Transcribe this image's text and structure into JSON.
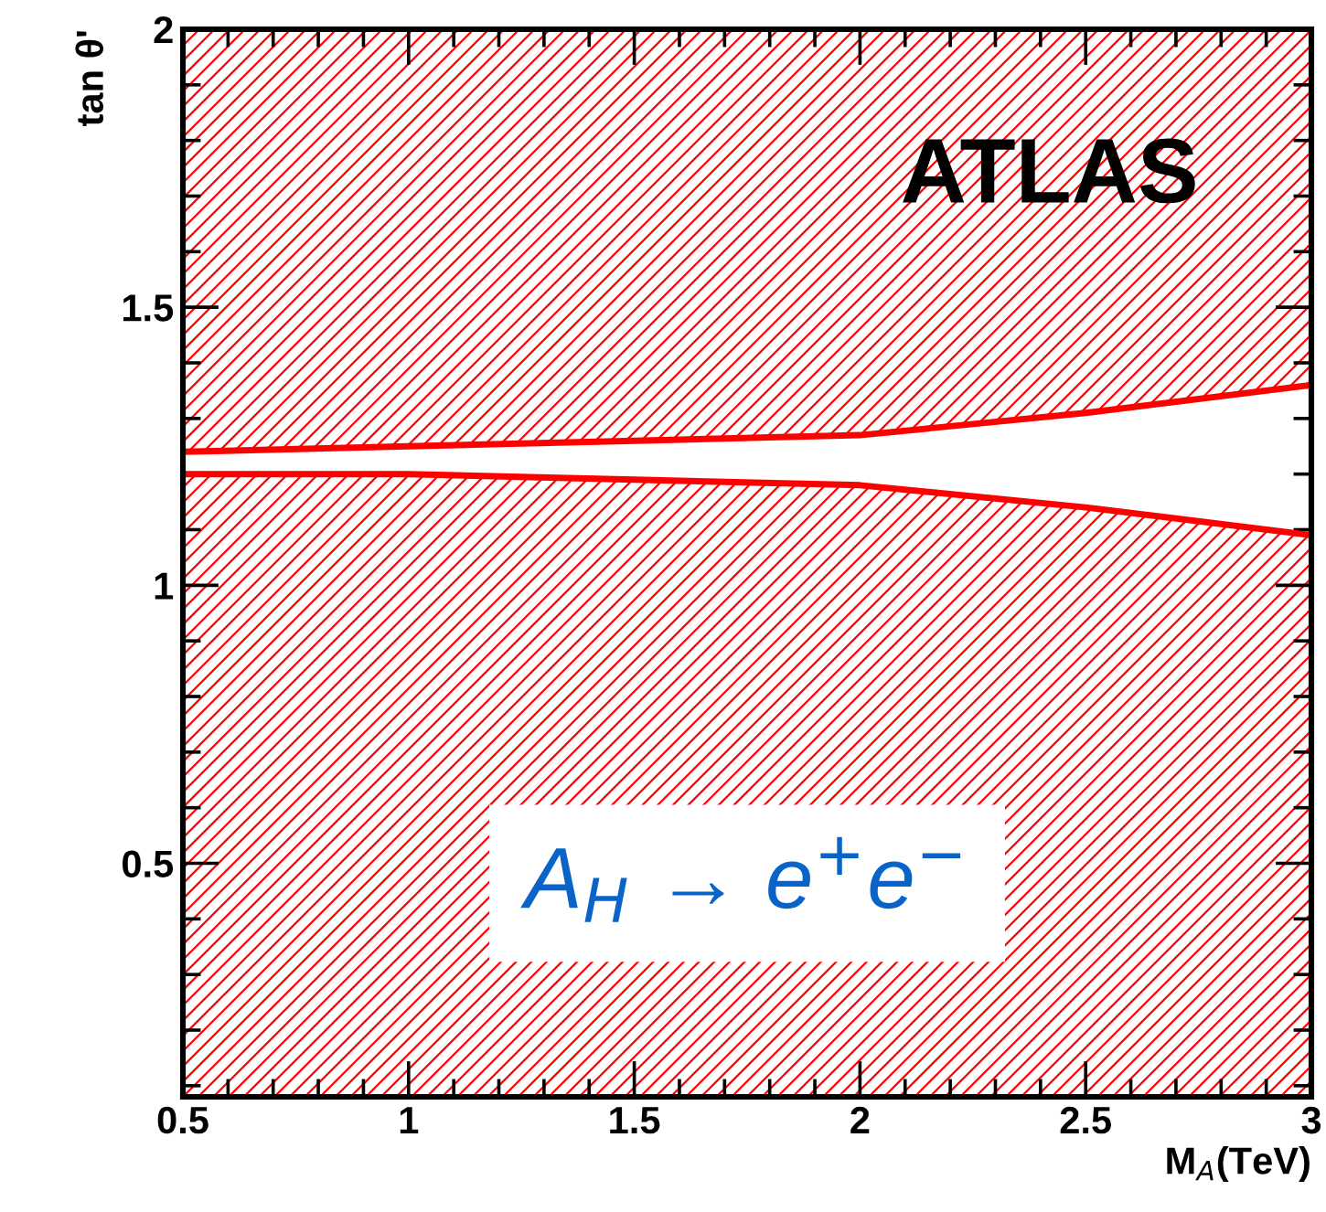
{
  "chart_data": {
    "type": "area",
    "xlabel": "M$_{A}$(TeV)",
    "ylabel": "tan θ'",
    "x": [
      0.5,
      1,
      1.5,
      2,
      2.5,
      3
    ],
    "series": [
      {
        "type": "line",
        "color": "#ff0000",
        "values": [
          1.24,
          1.25,
          1.26,
          1.27,
          1.31,
          1.36
        ],
        "lower": [
          1.24,
          1.25,
          1.26,
          1.27,
          1.31,
          1.36
        ],
        "upper": [
          2,
          2,
          2,
          2,
          2,
          2
        ]
      },
      {
        "color": "#ff0000",
        "values": [
          1.2,
          1.2,
          1.19,
          1.18,
          1.14,
          1.09
        ]
      }
    ],
    "xlim": [
      0.5,
      3
    ],
    "xticks": [
      0.5,
      1,
      1.5,
      2,
      2.5,
      3
    ],
    "ylim": [
      0.08,
      2
    ],
    "yticks": [
      0.5,
      1,
      1.5,
      2
    ],
    "grid": false,
    "legend": false,
    "annotations": [
      "ATLAS",
      "A$_{H}$ → e$^{+}$e$^{−}$"
    ]
  }
}
